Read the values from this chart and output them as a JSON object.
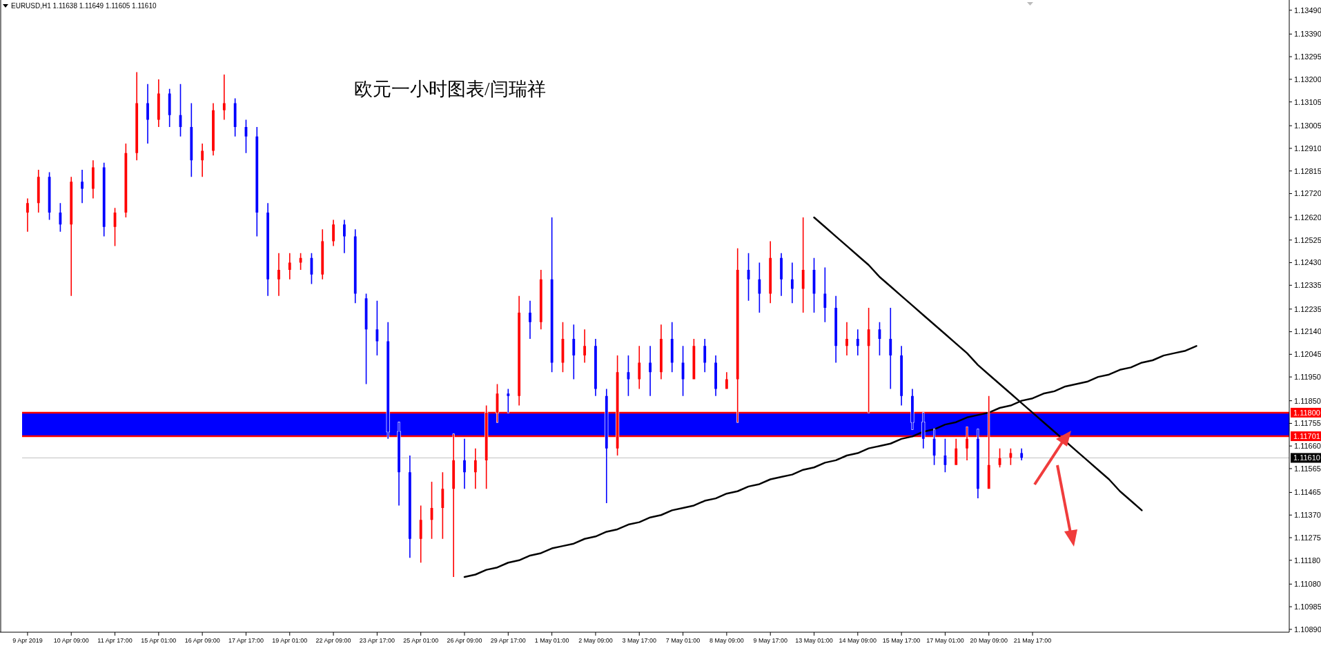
{
  "chart_data": {
    "type": "candlestick",
    "title": "欧元一小时图表/闫瑞祥",
    "annotations": [
      "EURUSD,H1  1.11638 1.11649 1.11605 1.11610"
    ],
    "categories": [
      "9 Apr 2019",
      null,
      null,
      null,
      "10 Apr 09:00",
      null,
      null,
      null,
      "11 Apr 17:00",
      null,
      null,
      null,
      "15 Apr 01:00",
      null,
      null,
      null,
      "16 Apr 09:00",
      null,
      null,
      null,
      "17 Apr 17:00",
      null,
      null,
      null,
      "19 Apr 01:00",
      null,
      null,
      null,
      "22 Apr 09:00",
      null,
      null,
      null,
      "23 Apr 17:00",
      null,
      null,
      null,
      "25 Apr 01:00",
      null,
      null,
      null,
      "26 Apr 09:00",
      null,
      null,
      null,
      "29 Apr 17:00",
      null,
      null,
      null,
      "1 May 01:00",
      null,
      null,
      null,
      "2 May 09:00",
      null,
      null,
      null,
      "3 May 17:00",
      null,
      null,
      null,
      "7 May 01:00",
      null,
      null,
      null,
      "8 May 09:00",
      null,
      null,
      null,
      "9 May 17:00",
      null,
      null,
      null,
      "13 May 01:00",
      null,
      null,
      null,
      "14 May 09:00",
      null,
      null,
      null,
      "15 May 17:00",
      null,
      null,
      null,
      "17 May 01:00",
      null,
      null,
      null,
      "20 May 09:00",
      null,
      null,
      null,
      "21 May 17:00",
      null,
      null,
      null,
      null,
      null,
      null,
      null,
      null,
      null,
      null,
      null,
      null,
      null,
      null,
      null,
      null,
      null,
      null,
      null,
      null,
      null,
      null,
      null
    ],
    "ohlc": [
      [
        1.1264,
        1.127,
        1.1256,
        1.1268
      ],
      [
        1.1268,
        1.1282,
        1.1264,
        1.1279
      ],
      [
        1.1279,
        1.1281,
        1.1261,
        1.1264
      ],
      [
        1.1264,
        1.1268,
        1.1256,
        1.1259
      ],
      [
        1.1259,
        1.1279,
        1.1229,
        1.1277
      ],
      [
        1.1277,
        1.1282,
        1.1268,
        1.1274
      ],
      [
        1.1274,
        1.1286,
        1.127,
        1.1283
      ],
      [
        1.1283,
        1.1285,
        1.1254,
        1.1258
      ],
      [
        1.1258,
        1.1266,
        1.125,
        1.1264
      ],
      [
        1.1264,
        1.1293,
        1.1262,
        1.1289
      ],
      [
        1.1289,
        1.1323,
        1.1286,
        1.131
      ],
      [
        1.131,
        1.1318,
        1.1293,
        1.1303
      ],
      [
        1.1303,
        1.132,
        1.13,
        1.1314
      ],
      [
        1.1314,
        1.1316,
        1.13,
        1.1305
      ],
      [
        1.1305,
        1.1318,
        1.1296,
        1.13
      ],
      [
        1.13,
        1.131,
        1.1279,
        1.1286
      ],
      [
        1.1286,
        1.1293,
        1.1279,
        1.129
      ],
      [
        1.129,
        1.131,
        1.1288,
        1.1307
      ],
      [
        1.1307,
        1.1322,
        1.1303,
        1.131
      ],
      [
        1.131,
        1.1312,
        1.1296,
        1.13
      ],
      [
        1.13,
        1.1303,
        1.1289,
        1.1296
      ],
      [
        1.1296,
        1.13,
        1.1254,
        1.1264
      ],
      [
        1.1264,
        1.1268,
        1.1229,
        1.1236
      ],
      [
        1.1236,
        1.1247,
        1.1229,
        1.124
      ],
      [
        1.124,
        1.1247,
        1.1236,
        1.1243
      ],
      [
        1.1243,
        1.1247,
        1.124,
        1.1245
      ],
      [
        1.1245,
        1.1247,
        1.1234,
        1.1238
      ],
      [
        1.1238,
        1.1257,
        1.1236,
        1.1252
      ],
      [
        1.1252,
        1.1261,
        1.125,
        1.1259
      ],
      [
        1.1259,
        1.1261,
        1.1247,
        1.1254
      ],
      [
        1.1254,
        1.1257,
        1.1226,
        1.123
      ],
      [
        1.1228,
        1.123,
        1.1192,
        1.1215
      ],
      [
        1.1215,
        1.1227,
        1.1204,
        1.121
      ],
      [
        1.121,
        1.1218,
        1.1169,
        1.1172
      ],
      [
        1.1172,
        1.1176,
        1.1141,
        1.1155
      ],
      [
        1.1155,
        1.1162,
        1.1119,
        1.1127
      ],
      [
        1.1127,
        1.1141,
        1.1117,
        1.1135
      ],
      [
        1.1135,
        1.1151,
        1.1127,
        1.114
      ],
      [
        1.114,
        1.1155,
        1.1127,
        1.1148
      ],
      [
        1.1148,
        1.1171,
        1.1111,
        1.116
      ],
      [
        1.116,
        1.1169,
        1.1148,
        1.1155
      ],
      [
        1.1155,
        1.1165,
        1.1148,
        1.116
      ],
      [
        1.116,
        1.1183,
        1.1148,
        1.118
      ],
      [
        1.118,
        1.1192,
        1.1176,
        1.1188
      ],
      [
        1.1188,
        1.119,
        1.118,
        1.1187
      ],
      [
        1.1187,
        1.1229,
        1.1183,
        1.1222
      ],
      [
        1.1222,
        1.1227,
        1.1211,
        1.1218
      ],
      [
        1.1218,
        1.124,
        1.1215,
        1.1236
      ],
      [
        1.1236,
        1.1262,
        1.1197,
        1.1201
      ],
      [
        1.1201,
        1.1218,
        1.1197,
        1.1211
      ],
      [
        1.1211,
        1.1217,
        1.1194,
        1.1204
      ],
      [
        1.1204,
        1.1215,
        1.1201,
        1.1208
      ],
      [
        1.1208,
        1.1211,
        1.1187,
        1.119
      ],
      [
        1.1187,
        1.119,
        1.1142,
        1.1165
      ],
      [
        1.1165,
        1.1204,
        1.1162,
        1.1197
      ],
      [
        1.1197,
        1.1204,
        1.1187,
        1.1194
      ],
      [
        1.1194,
        1.1208,
        1.119,
        1.1201
      ],
      [
        1.1201,
        1.1208,
        1.1187,
        1.1197
      ],
      [
        1.1197,
        1.1217,
        1.1194,
        1.1211
      ],
      [
        1.1211,
        1.1218,
        1.1197,
        1.1201
      ],
      [
        1.1201,
        1.1208,
        1.1187,
        1.1194
      ],
      [
        1.1194,
        1.1211,
        1.1194,
        1.1208
      ],
      [
        1.1208,
        1.1211,
        1.1197,
        1.1201
      ],
      [
        1.1201,
        1.1204,
        1.1187,
        1.119
      ],
      [
        1.119,
        1.1197,
        1.119,
        1.1194
      ],
      [
        1.1194,
        1.1249,
        1.1176,
        1.124
      ],
      [
        1.124,
        1.1247,
        1.1227,
        1.1236
      ],
      [
        1.1236,
        1.1243,
        1.1222,
        1.123
      ],
      [
        1.123,
        1.1252,
        1.1226,
        1.1245
      ],
      [
        1.1245,
        1.1247,
        1.1229,
        1.1236
      ],
      [
        1.1236,
        1.1243,
        1.1226,
        1.1232
      ],
      [
        1.1232,
        1.1262,
        1.1222,
        1.124
      ],
      [
        1.124,
        1.1245,
        1.1222,
        1.123
      ],
      [
        1.123,
        1.1241,
        1.1218,
        1.1224
      ],
      [
        1.1224,
        1.1229,
        1.1201,
        1.1208
      ],
      [
        1.1208,
        1.1218,
        1.1204,
        1.1211
      ],
      [
        1.1211,
        1.1215,
        1.1204,
        1.1208
      ],
      [
        1.1208,
        1.1224,
        1.118,
        1.1215
      ],
      [
        1.1215,
        1.1218,
        1.1204,
        1.1211
      ],
      [
        1.1211,
        1.1224,
        1.119,
        1.1204
      ],
      [
        1.1204,
        1.1208,
        1.1183,
        1.1187
      ],
      [
        1.1187,
        1.119,
        1.1173,
        1.1176
      ],
      [
        1.1176,
        1.118,
        1.1165,
        1.1169
      ],
      [
        1.1169,
        1.1173,
        1.1158,
        1.1162
      ],
      [
        1.1162,
        1.1169,
        1.1155,
        1.1158
      ],
      [
        1.1158,
        1.1169,
        1.1158,
        1.1165
      ],
      [
        1.1165,
        1.1174,
        1.116,
        1.1169
      ],
      [
        1.1169,
        1.1173,
        1.1144,
        1.1148
      ],
      [
        1.1148,
        1.1187,
        1.1148,
        1.1158
      ],
      [
        1.1158,
        1.1165,
        1.1157,
        1.1161
      ],
      [
        1.1161,
        1.1165,
        1.1158,
        1.1163
      ],
      [
        1.1163,
        1.1165,
        1.116,
        1.1161
      ],
      null,
      null,
      null,
      null,
      null,
      null,
      null,
      null,
      null,
      null,
      null,
      null,
      null,
      null,
      null,
      null,
      null,
      null,
      null,
      null,
      null,
      null,
      null,
      null
    ],
    "colors": [
      "#ff0000",
      "#ff0000",
      "#0000ff",
      "#0000ff",
      "#ff0000",
      "#0000ff",
      "#ff0000",
      "#0000ff",
      "#ff0000",
      "#ff0000",
      "#ff0000",
      "#0000ff",
      "#ff0000",
      "#0000ff",
      "#0000ff",
      "#0000ff",
      "#ff0000",
      "#ff0000",
      "#ff0000",
      "#0000ff",
      "#0000ff",
      "#0000ff",
      "#0000ff",
      "#ff0000",
      "#ff0000",
      "#ff0000",
      "#0000ff",
      "#ff0000",
      "#ff0000",
      "#0000ff",
      "#0000ff",
      "#0000ff",
      "#0000ff",
      "#0000ff",
      "#0000ff",
      "#0000ff",
      "#ff0000",
      "#ff0000",
      "#ff0000",
      "#ff0000",
      "#0000ff",
      "#ff0000",
      "#ff0000",
      "#ff0000",
      "#0000ff",
      "#ff0000",
      "#0000ff",
      "#ff0000",
      "#0000ff",
      "#ff0000",
      "#0000ff",
      "#ff0000",
      "#0000ff",
      "#0000ff",
      "#ff0000",
      "#0000ff",
      "#ff0000",
      "#0000ff",
      "#ff0000",
      "#0000ff",
      "#0000ff",
      "#ff0000",
      "#0000ff",
      "#0000ff",
      "#ff0000",
      "#ff0000",
      "#0000ff",
      "#0000ff",
      "#ff0000",
      "#0000ff",
      "#0000ff",
      "#ff0000",
      "#0000ff",
      "#0000ff",
      "#0000ff",
      "#ff0000",
      "#0000ff",
      "#ff0000",
      "#0000ff",
      "#0000ff",
      "#0000ff",
      "#0000ff",
      "#0000ff",
      "#0000ff",
      "#0000ff",
      "#ff0000",
      "#ff0000",
      "#0000ff",
      "#ff0000",
      "#ff0000",
      "#ff0000",
      "#0000ff",
      null,
      null,
      null,
      null,
      null,
      null,
      null,
      null,
      null,
      null,
      null,
      null,
      null,
      null,
      null,
      null,
      null,
      null,
      null,
      null,
      null,
      null,
      null,
      null
    ],
    "series": [
      {
        "type": "line",
        "color": "#000000",
        "values": [
          null,
          null,
          null,
          null,
          null,
          null,
          null,
          null,
          null,
          null,
          null,
          null,
          null,
          null,
          null,
          null,
          null,
          null,
          null,
          null,
          null,
          null,
          null,
          null,
          null,
          null,
          null,
          null,
          null,
          null,
          null,
          null,
          null,
          null,
          null,
          null,
          null,
          null,
          null,
          null,
          1.1111,
          1.1112,
          1.1114,
          1.1115,
          1.1117,
          1.1118,
          1.112,
          1.1121,
          1.1123,
          1.1124,
          1.1125,
          1.1127,
          1.1128,
          1.113,
          1.1131,
          1.1133,
          1.1134,
          1.1136,
          1.1137,
          1.1139,
          1.114,
          1.1141,
          1.1143,
          1.1144,
          1.1146,
          1.1147,
          1.1149,
          1.115,
          1.1152,
          1.1153,
          1.1154,
          1.1156,
          1.1157,
          1.1159,
          1.116,
          1.1162,
          1.1163,
          1.1165,
          1.1166,
          1.1167,
          1.1169,
          1.117,
          1.1172,
          1.1173,
          1.1175,
          1.1176,
          1.1178,
          1.1179,
          1.118,
          1.1182,
          1.1183,
          1.1185,
          1.1186,
          1.1188,
          1.1189,
          1.1191,
          1.1192,
          1.1193,
          1.1195,
          1.1196,
          1.1198,
          1.1199,
          1.1201,
          1.1202,
          1.1204,
          1.1205,
          1.1206,
          1.1208,
          null,
          null,
          null,
          null,
          null,
          null,
          null,
          null
        ]
      },
      {
        "type": "line",
        "color": "#000000",
        "values": [
          null,
          null,
          null,
          null,
          null,
          null,
          null,
          null,
          null,
          null,
          null,
          null,
          null,
          null,
          null,
          null,
          null,
          null,
          null,
          null,
          null,
          null,
          null,
          null,
          null,
          null,
          null,
          null,
          null,
          null,
          null,
          null,
          null,
          null,
          null,
          null,
          null,
          null,
          null,
          null,
          null,
          null,
          null,
          null,
          null,
          null,
          null,
          null,
          null,
          null,
          null,
          null,
          null,
          null,
          null,
          null,
          null,
          null,
          null,
          null,
          null,
          null,
          null,
          null,
          null,
          null,
          null,
          null,
          null,
          null,
          null,
          null,
          1.1262,
          1.1258,
          1.1254,
          1.125,
          1.1246,
          1.1242,
          1.1237,
          1.1233,
          1.1229,
          1.1225,
          1.1221,
          1.1217,
          1.1213,
          1.1209,
          1.1205,
          1.12,
          1.1196,
          1.1192,
          1.1188,
          1.1184,
          1.118,
          1.1176,
          1.1172,
          1.1168,
          1.1164,
          1.116,
          1.1156,
          1.1152,
          1.1147,
          1.1143,
          1.1139,
          null,
          null,
          null,
          null,
          null,
          null,
          null,
          null,
          null,
          null,
          null,
          null,
          null
        ]
      }
    ],
    "bands": [
      {
        "axis": "y",
        "from": 1.11701,
        "to": 1.118,
        "color": "#0000ff"
      }
    ],
    "ref_lines": [
      {
        "axis": "y",
        "value": 1.118,
        "label": "1.11800",
        "color": "#ff0000"
      },
      {
        "axis": "y",
        "value": 1.11701,
        "label": "1.11701",
        "color": "#ff0000"
      },
      {
        "axis": "y",
        "value": 1.1161,
        "label": "1.11610",
        "color": "#c0c0c0"
      }
    ],
    "ylim": [
      1.10878,
      1.13533
    ],
    "yticks": [
      {
        "value": 1.1349,
        "label": "1.13490"
      },
      {
        "value": 1.1339,
        "label": "1.13390"
      },
      {
        "value": 1.13295,
        "label": "1.13295"
      },
      {
        "value": 1.132,
        "label": "1.13200"
      },
      {
        "value": 1.13105,
        "label": "1.13105"
      },
      {
        "value": 1.13005,
        "label": "1.13005"
      },
      {
        "value": 1.1291,
        "label": "1.12910"
      },
      {
        "value": 1.12815,
        "label": "1.12815"
      },
      {
        "value": 1.1272,
        "label": "1.12720"
      },
      {
        "value": 1.1262,
        "label": "1.12620"
      },
      {
        "value": 1.12525,
        "label": "1.12525"
      },
      {
        "value": 1.1243,
        "label": "1.12430"
      },
      {
        "value": 1.12335,
        "label": "1.12335"
      },
      {
        "value": 1.12235,
        "label": "1.12235"
      },
      {
        "value": 1.1214,
        "label": "1.12140"
      },
      {
        "value": 1.12045,
        "label": "1.12045"
      },
      {
        "value": 1.1195,
        "label": "1.11950"
      },
      {
        "value": 1.1185,
        "label": "1.11850"
      },
      {
        "value": 1.11755,
        "label": "1.11755"
      },
      {
        "value": 1.1166,
        "label": "1.11660"
      },
      {
        "value": 1.11565,
        "label": "1.11565"
      },
      {
        "value": 1.11465,
        "label": "1.11465"
      },
      {
        "value": 1.1137,
        "label": "1.11370"
      },
      {
        "value": 1.11275,
        "label": "1.11275"
      },
      {
        "value": 1.1118,
        "label": "1.11180"
      },
      {
        "value": 1.1108,
        "label": "1.11080"
      },
      {
        "value": 1.10985,
        "label": "1.10985"
      },
      {
        "value": 1.1089,
        "label": "1.10890"
      }
    ],
    "grid": false
  }
}
